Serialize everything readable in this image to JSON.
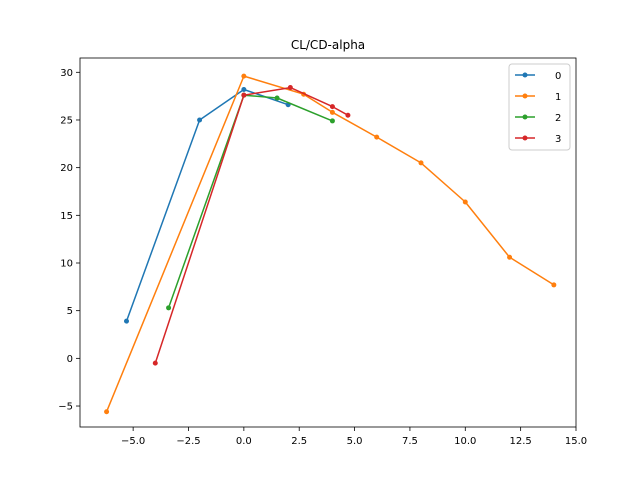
{
  "chart_data": {
    "type": "line",
    "title": "CL/CD-alpha",
    "xlabel": "",
    "ylabel": "",
    "xlim": [
      -7.4,
      15.0
    ],
    "ylim": [
      -7.2,
      31.5
    ],
    "xticks": [
      -5.0,
      -2.5,
      0.0,
      2.5,
      5.0,
      7.5,
      10.0,
      12.5,
      15.0
    ],
    "xtick_labels": [
      "−5.0",
      "−2.5",
      "0.0",
      "2.5",
      "5.0",
      "7.5",
      "10.0",
      "12.5",
      "15.0"
    ],
    "yticks": [
      -5,
      0,
      5,
      10,
      15,
      20,
      25,
      30
    ],
    "ytick_labels": [
      "−5",
      "0",
      "5",
      "10",
      "15",
      "20",
      "25",
      "30"
    ],
    "grid": false,
    "legend": "top-right",
    "series": [
      {
        "name": "0",
        "color": "#1f77b4",
        "x": [
          -5.3,
          -2.0,
          0.0,
          2.0
        ],
        "y": [
          3.9,
          25.0,
          28.2,
          26.6
        ]
      },
      {
        "name": "1",
        "color": "#ff7f0e",
        "x": [
          -6.2,
          0.0,
          2.7,
          4.0,
          6.0,
          8.0,
          10.0,
          12.0,
          14.0
        ],
        "y": [
          -5.6,
          29.6,
          27.7,
          25.8,
          23.2,
          20.5,
          16.4,
          10.6,
          7.7
        ]
      },
      {
        "name": "2",
        "color": "#2ca02c",
        "x": [
          -3.4,
          0.0,
          1.5,
          4.0
        ],
        "y": [
          5.3,
          27.6,
          27.3,
          24.9
        ]
      },
      {
        "name": "3",
        "color": "#d62728",
        "x": [
          -4.0,
          0.0,
          2.1,
          4.0,
          4.7
        ],
        "y": [
          -0.5,
          27.6,
          28.4,
          26.4,
          25.5
        ]
      }
    ]
  }
}
